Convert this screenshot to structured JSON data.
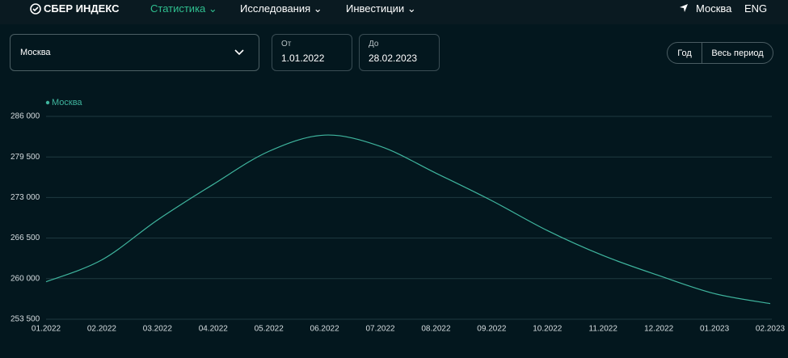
{
  "header": {
    "logo": "СБЕР ИНДЕКС",
    "nav": [
      "Статистика",
      "Исследования",
      "Инвестиции"
    ],
    "location": "Москва",
    "language": "ENG"
  },
  "controls": {
    "region": "Москва",
    "from_label": "От",
    "from_value": "1.01.2022",
    "to_label": "До",
    "to_value": "28.02.2023",
    "period_buttons": [
      "Год",
      "Весь период"
    ]
  },
  "chart_data": {
    "type": "line",
    "categories": [
      "01.2022",
      "02.2022",
      "03.2022",
      "04.2022",
      "05.2022",
      "06.2022",
      "07.2022",
      "08.2022",
      "09.2022",
      "10.2022",
      "11.2022",
      "12.2022",
      "01.2023",
      "02.2023"
    ],
    "series": [
      {
        "name": "Москва",
        "color": "#3fb59e",
        "values": [
          259500,
          263000,
          269400,
          275100,
          280400,
          283000,
          281200,
          276900,
          272500,
          267700,
          263700,
          260500,
          257600,
          256000
        ]
      }
    ],
    "ylim": [
      253500,
      286000
    ],
    "yticks": [
      {
        "value": 286000,
        "label": "286 000"
      },
      {
        "value": 279500,
        "label": "279 500"
      },
      {
        "value": 273000,
        "label": "273 000"
      },
      {
        "value": 266500,
        "label": "266 500"
      },
      {
        "value": 260000,
        "label": "260 000"
      },
      {
        "value": 253500,
        "label": "253 500"
      }
    ],
    "grid": true
  }
}
